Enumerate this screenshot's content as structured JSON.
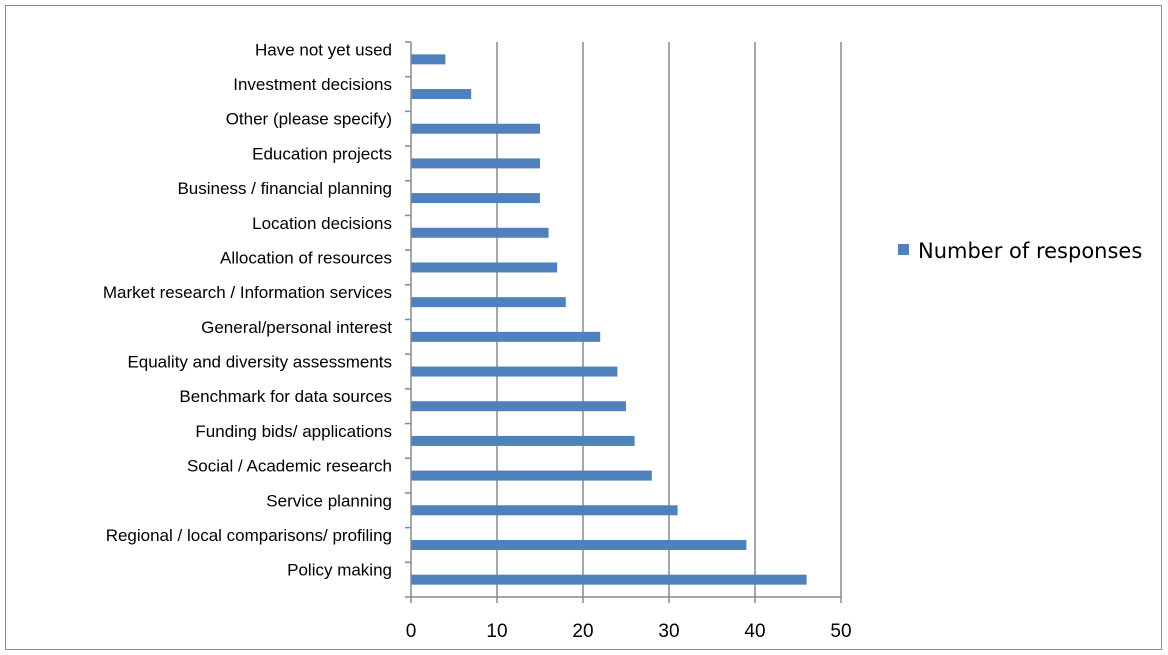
{
  "chart_data": {
    "type": "bar",
    "orientation": "horizontal",
    "categories": [
      "Policy making",
      "Regional / local comparisons/ profiling",
      "Service planning",
      "Social / Academic research",
      "Funding bids/ applications",
      "Benchmark for data sources",
      "Equality and diversity assessments",
      "General/personal interest",
      "Market research / Information services",
      "Allocation of resources",
      "Location decisions",
      "Business / financial planning",
      "Education projects",
      "Other (please specify)",
      "Investment decisions",
      "Have not yet used"
    ],
    "series": [
      {
        "name": "Number of responses",
        "color": "#4f81bd",
        "values": [
          46,
          39,
          31,
          28,
          26,
          25,
          24,
          22,
          18,
          17,
          16,
          15,
          15,
          15,
          7,
          4
        ]
      }
    ],
    "xlim": [
      0,
      50
    ],
    "xticks": [
      0,
      10,
      20,
      30,
      40,
      50
    ],
    "grid": "vertical",
    "legend_position": "right"
  }
}
